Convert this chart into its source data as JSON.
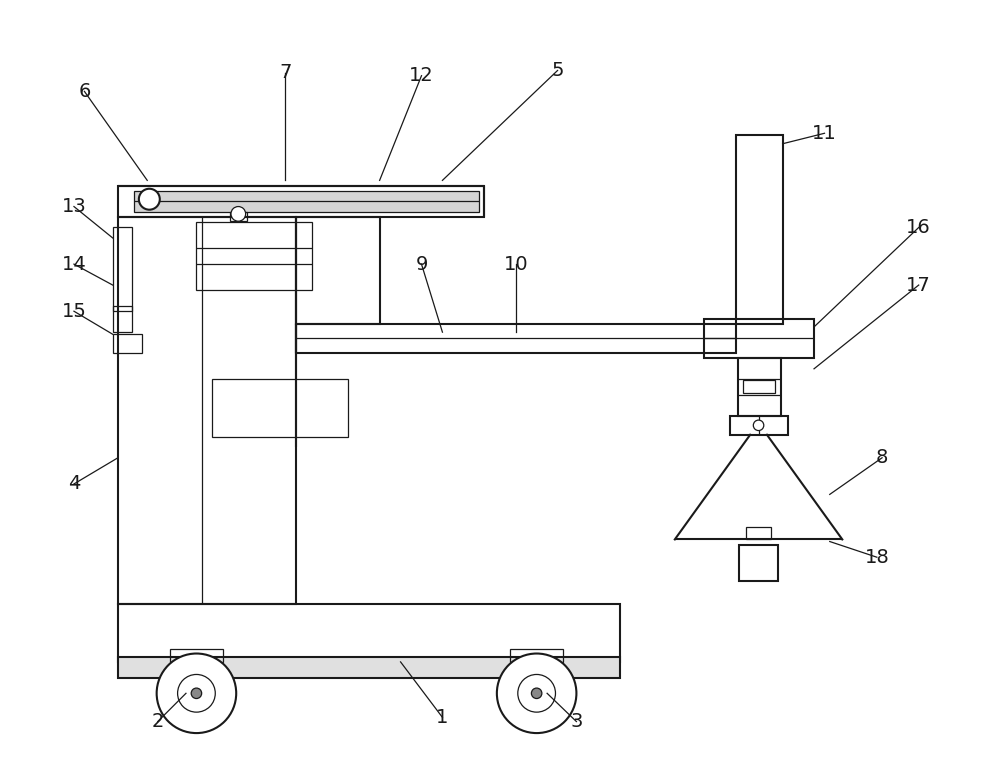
{
  "bg_color": "#ffffff",
  "line_color": "#1a1a1a",
  "lw_main": 1.5,
  "lw_thin": 0.9,
  "fig_width": 10.0,
  "fig_height": 7.69,
  "dpi": 100
}
